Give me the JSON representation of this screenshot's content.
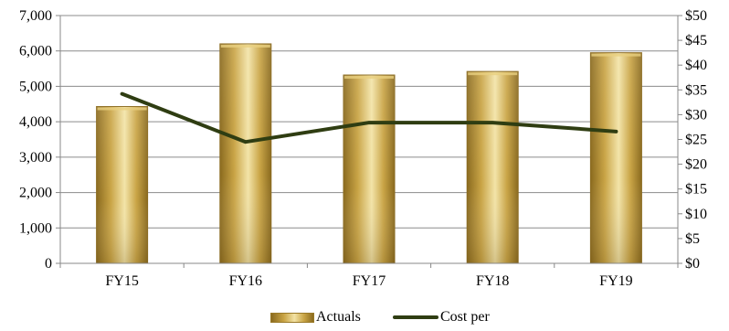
{
  "chart_data": {
    "type": "bar",
    "categories": [
      "FY15",
      "FY16",
      "FY17",
      "FY18",
      "FY19"
    ],
    "series": [
      {
        "name": "Actuals",
        "type": "bar",
        "axis": "left",
        "values": [
          4430,
          6200,
          5320,
          5420,
          5950
        ]
      },
      {
        "name": "Cost per",
        "type": "line",
        "axis": "right",
        "values": [
          34.2,
          24.5,
          28.4,
          28.4,
          26.6
        ]
      }
    ],
    "y_left": {
      "ylim": [
        0,
        7000
      ],
      "ticks": [
        0,
        1000,
        2000,
        3000,
        4000,
        5000,
        6000,
        7000
      ],
      "tick_labels": [
        "0",
        "1,000",
        "2,000",
        "3,000",
        "4,000",
        "5,000",
        "6,000",
        "7,000"
      ]
    },
    "y_right": {
      "ylim": [
        0,
        50
      ],
      "ticks": [
        0,
        5,
        10,
        15,
        20,
        25,
        30,
        35,
        40,
        45,
        50
      ],
      "tick_labels": [
        "$0",
        "$5",
        "$10",
        "$15",
        "$20",
        "$25",
        "$30",
        "$35",
        "$40",
        "$45",
        "$50"
      ]
    },
    "grid": true,
    "legend_position": "bottom",
    "colors": {
      "bar_dark": "#8a6a1e",
      "bar_mid": "#c9a445",
      "bar_light": "#f2e2a4",
      "line": "#2f3d12",
      "grid": "#8c8c8c",
      "axis": "#888888"
    }
  },
  "legend": {
    "bar_label": "Actuals",
    "line_label": "Cost per"
  }
}
